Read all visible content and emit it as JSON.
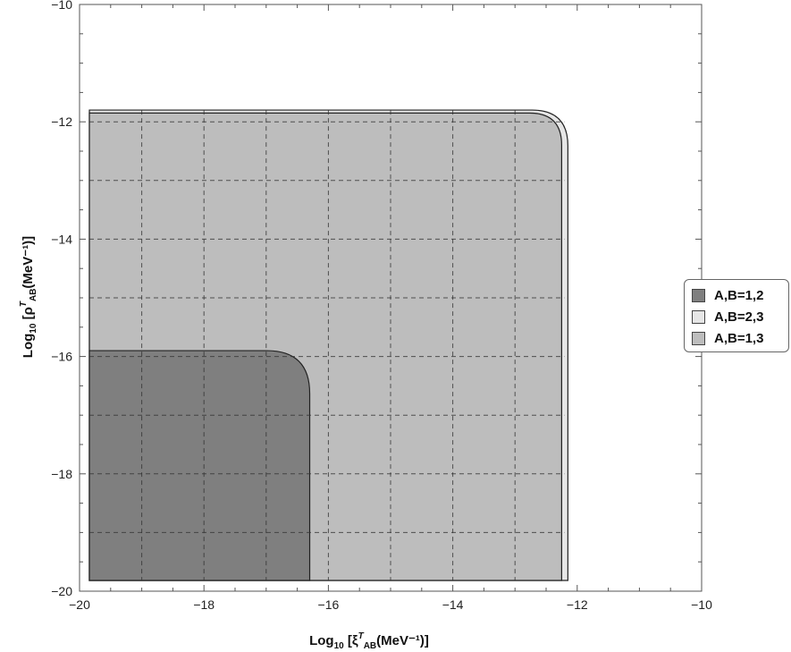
{
  "chart_data": {
    "type": "area",
    "xlabel": {
      "prefix": "Log",
      "sub1": "10",
      "mid": " [ξ",
      "sup": "T",
      "sub2": "AB",
      "suffix": "(MeV⁻¹)]"
    },
    "ylabel": {
      "prefix": "Log",
      "sub1": "10",
      "mid": " [ρ",
      "sup": "T",
      "sub2": "AB",
      "suffix": "(MeV⁻¹)]"
    },
    "xlim": [
      -20,
      -10
    ],
    "ylim": [
      -20,
      -10
    ],
    "x_ticks": [
      -20,
      -18,
      -16,
      -14,
      -12,
      -10
    ],
    "y_ticks": [
      -20,
      -18,
      -16,
      -14,
      -12,
      -10
    ],
    "x_tick_labels": [
      "−20",
      "−18",
      "−16",
      "−14",
      "−12",
      "−10"
    ],
    "y_tick_labels": [
      "−20",
      "−18",
      "−16",
      "−14",
      "−12",
      "−10"
    ],
    "gridlines": {
      "x": [
        -19,
        -18,
        -17,
        -16,
        -15,
        -14,
        -13,
        -12
      ],
      "y": [
        -19,
        -18,
        -17,
        -16,
        -15,
        -14,
        -13,
        -12
      ],
      "style": "dashed"
    },
    "legend_position": "right",
    "series": [
      {
        "name": "A,B=1,2",
        "color": "#7f7f7f",
        "x_max": -16.3,
        "y_max": -15.9
      },
      {
        "name": "A,B=2,3",
        "color": "#e6e6e6",
        "x_max": -12.15,
        "y_max": -11.8
      },
      {
        "name": "A,B=1,3",
        "color": "#bdbdbd",
        "x_max": -12.25,
        "y_max": -11.85
      }
    ]
  },
  "legend": {
    "items": [
      {
        "label": "A,B=1,2",
        "color": "#7f7f7f"
      },
      {
        "label": "A,B=2,3",
        "color": "#e6e6e6"
      },
      {
        "label": "A,B=1,3",
        "color": "#bdbdbd"
      }
    ]
  }
}
